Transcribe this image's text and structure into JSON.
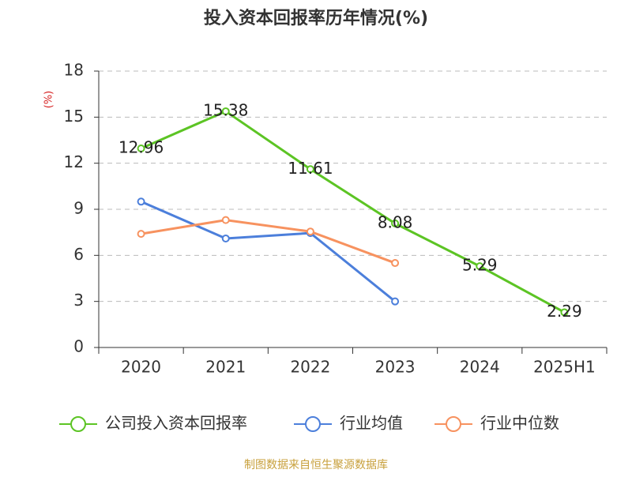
{
  "chart_data": {
    "type": "line",
    "title": "投入资本回报率历年情况(%)",
    "y_label": "(%)",
    "categories": [
      "2020",
      "2021",
      "2022",
      "2023",
      "2024",
      "2025H1"
    ],
    "series": [
      {
        "name": "公司投入资本回报率",
        "color": "#5cc424",
        "values": [
          12.96,
          15.38,
          11.61,
          8.08,
          5.29,
          2.29
        ],
        "data_labels": true
      },
      {
        "name": "行业均值",
        "color": "#4c7fdb",
        "values": [
          9.5,
          7.1,
          7.45,
          3.0,
          null,
          null
        ]
      },
      {
        "name": "行业中位数",
        "color": "#f7925f",
        "values": [
          7.4,
          8.3,
          7.55,
          5.5,
          null,
          null
        ]
      }
    ],
    "ylim": [
      0,
      18
    ],
    "yticks": [
      0,
      3,
      6,
      9,
      12,
      15,
      18
    ],
    "grid": true,
    "legend": "bottom",
    "source": "制图数据来自恒生聚源数据库"
  }
}
